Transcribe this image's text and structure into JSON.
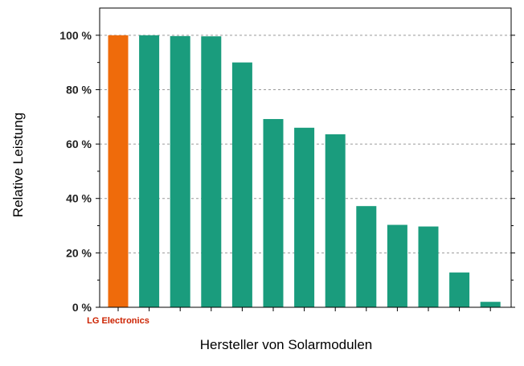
{
  "chart_data": {
    "type": "bar",
    "title": "",
    "xlabel": "Hersteller von Solarmodulen",
    "ylabel": "Relative Leistung",
    "ylim": [
      0,
      110
    ],
    "yticks": [
      0,
      20,
      40,
      60,
      80,
      100
    ],
    "ytick_labels": [
      "0 %",
      "20 %",
      "40 %",
      "60 %",
      "80 %",
      "100 %"
    ],
    "grid": true,
    "categories": [
      "LG Electronics",
      "",
      "",
      "",
      "",
      "",
      "",
      "",
      "",
      "",
      "",
      "",
      ""
    ],
    "values": [
      100,
      100,
      99.7,
      99.6,
      90,
      69.2,
      66,
      63.6,
      37.2,
      30.3,
      29.7,
      12.8,
      2
    ],
    "highlight_index": 0,
    "colors": {
      "highlight": "#ef6b0b",
      "bar": "#1a9c7d",
      "highlight_label": "#cc2200",
      "grid": "#9a9a9a",
      "axis": "#000000"
    }
  }
}
